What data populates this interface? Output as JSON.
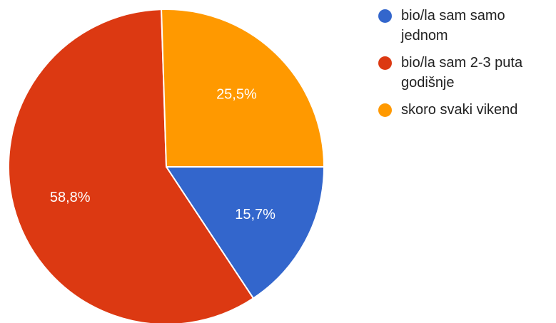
{
  "chart_data": {
    "type": "pie",
    "title": "",
    "slices": [
      {
        "label": "bio/la sam samo jednom",
        "value": 15.7,
        "value_label": "15,7%",
        "color": "#3366cc"
      },
      {
        "label": "bio/la sam 2-3 puta godišnje",
        "value": 58.8,
        "value_label": "58,8%",
        "color": "#dc3912"
      },
      {
        "label": "skoro svaki vikend",
        "value": 25.5,
        "value_label": "25,5%",
        "color": "#ff9900"
      }
    ],
    "legend": "right",
    "start_direction": "3 o'clock",
    "direction": "clockwise"
  }
}
